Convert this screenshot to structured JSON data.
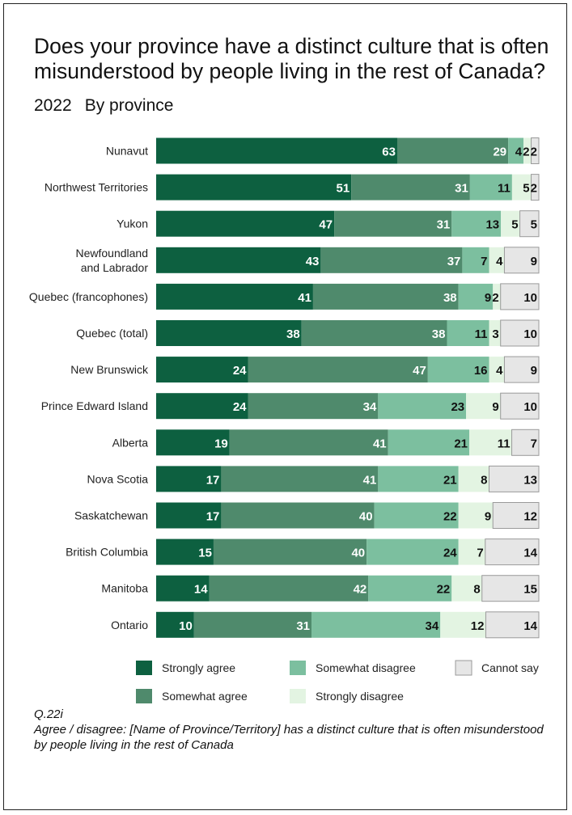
{
  "chart_data": {
    "type": "bar",
    "orientation": "horizontal",
    "stacked": true,
    "title": "Does your province have a distinct culture that is often misunderstood by people living in the rest of Canada?",
    "subtitle_year": "2022",
    "subtitle_by": "By province",
    "categories": [
      "Nunavut",
      "Northwest Territories",
      "Yukon",
      "Newfoundland\nand Labrador",
      "Quebec (francophones)",
      "Quebec (total)",
      "New Brunswick",
      "Prince Edward Island",
      "Alberta",
      "Nova Scotia",
      "Saskatchewan",
      "British Columbia",
      "Manitoba",
      "Ontario"
    ],
    "series": [
      {
        "name": "Strongly agree",
        "color": "#0d6040",
        "label_color": "#ffffff",
        "values": [
          63,
          51,
          47,
          43,
          41,
          38,
          24,
          24,
          19,
          17,
          17,
          15,
          14,
          10
        ]
      },
      {
        "name": "Somewhat agree",
        "color": "#4f8a6c",
        "label_color": "#ffffff",
        "values": [
          29,
          31,
          31,
          37,
          38,
          38,
          47,
          34,
          41,
          41,
          40,
          40,
          42,
          31
        ]
      },
      {
        "name": "Somewhat disagree",
        "color": "#7cbf9f",
        "label_color": "#111111",
        "values": [
          4,
          11,
          13,
          7,
          9,
          11,
          16,
          23,
          21,
          21,
          22,
          24,
          22,
          34
        ]
      },
      {
        "name": "Strongly disagree",
        "color": "#e3f4e2",
        "label_color": "#111111",
        "values": [
          2,
          5,
          5,
          4,
          2,
          3,
          4,
          9,
          11,
          8,
          9,
          7,
          8,
          12
        ]
      },
      {
        "name": "Cannot say",
        "color": "#e6e6e6",
        "label_color": "#111111",
        "values": [
          2,
          2,
          5,
          9,
          10,
          10,
          9,
          10,
          7,
          13,
          12,
          14,
          15,
          14
        ]
      }
    ],
    "xlim": [
      0,
      100
    ],
    "grid": false,
    "legend_position": "bottom"
  },
  "note": {
    "code": "Q.22i",
    "text": "Agree / disagree: [Name of Province/Territory] has a distinct culture that is often misunderstood by people living in the rest of Canada"
  }
}
